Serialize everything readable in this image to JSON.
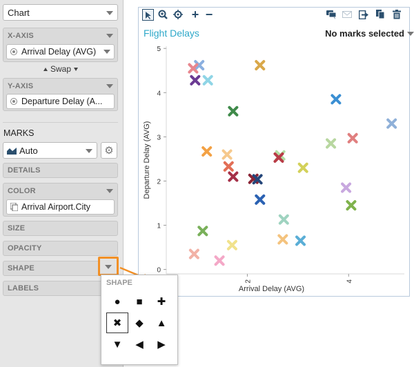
{
  "left_panel": {
    "chart_type": "Chart",
    "x_axis": {
      "label": "X-AXIS",
      "value": "Arrival Delay (AVG)"
    },
    "swap_label": "Swap",
    "y_axis": {
      "label": "Y-AXIS",
      "value": "Departure Delay (A..."
    },
    "marks": {
      "heading": "MARKS",
      "type": "Auto",
      "shelves": {
        "details": "DETAILS",
        "color": {
          "label": "COLOR",
          "value": "Arrival Airport.City"
        },
        "size": "SIZE",
        "opacity": "OPACITY",
        "shape": "SHAPE",
        "labels": "LABELS"
      }
    }
  },
  "chart_header": {
    "title": "Flight Delays",
    "status": "No marks selected"
  },
  "toolbar_icons": [
    "select-icon",
    "zoom-icon",
    "center-icon",
    "plus-icon",
    "minus-icon",
    "comment-icon",
    "email-icon",
    "export-icon",
    "copy-icon",
    "trash-icon"
  ],
  "shape_popup": {
    "label": "SHAPE",
    "shapes": [
      "●",
      "■",
      "✚",
      "✖",
      "◆",
      "▲",
      "▼",
      "◀",
      "▶"
    ],
    "selected_index": 3
  },
  "accent_color": "#f29026",
  "chart_data": {
    "type": "scatter",
    "xlabel": "Arrival Delay (AVG)",
    "ylabel": "Departure Delay (AVG)",
    "xlim": [
      0.4,
      5.1
    ],
    "ylim": [
      -0.1,
      5.05
    ],
    "x_ticks": [
      2,
      4
    ],
    "y_ticks": [
      0,
      1,
      2,
      3,
      4,
      5
    ],
    "marker": "x",
    "points": [
      {
        "x": 1.05,
        "y": 4.62,
        "color": "#8bb0e0"
      },
      {
        "x": 0.93,
        "y": 4.55,
        "color": "#e8878f"
      },
      {
        "x": 0.97,
        "y": 4.28,
        "color": "#6b3a93"
      },
      {
        "x": 1.22,
        "y": 4.28,
        "color": "#8fd5e6"
      },
      {
        "x": 2.25,
        "y": 4.62,
        "color": "#d9a84a"
      },
      {
        "x": 1.72,
        "y": 3.58,
        "color": "#3f8a4a"
      },
      {
        "x": 3.75,
        "y": 3.85,
        "color": "#3b8fd3"
      },
      {
        "x": 4.85,
        "y": 3.3,
        "color": "#8fb0d8"
      },
      {
        "x": 4.08,
        "y": 2.97,
        "color": "#e07f7f"
      },
      {
        "x": 3.65,
        "y": 2.85,
        "color": "#b8d7a0"
      },
      {
        "x": 1.2,
        "y": 2.67,
        "color": "#f3a144"
      },
      {
        "x": 1.6,
        "y": 2.6,
        "color": "#f6c98d"
      },
      {
        "x": 2.65,
        "y": 2.58,
        "color": "#b3dea3"
      },
      {
        "x": 2.62,
        "y": 2.53,
        "color": "#b83c46"
      },
      {
        "x": 3.1,
        "y": 2.3,
        "color": "#d3d15a"
      },
      {
        "x": 1.63,
        "y": 2.33,
        "color": "#e26e56"
      },
      {
        "x": 1.72,
        "y": 2.1,
        "color": "#a53048"
      },
      {
        "x": 2.12,
        "y": 2.05,
        "color": "#8a2435"
      },
      {
        "x": 2.2,
        "y": 2.04,
        "color": "#24467a"
      },
      {
        "x": 3.95,
        "y": 1.85,
        "color": "#c8a8df"
      },
      {
        "x": 4.05,
        "y": 1.45,
        "color": "#7fb24c"
      },
      {
        "x": 2.25,
        "y": 1.58,
        "color": "#2b62b3"
      },
      {
        "x": 2.72,
        "y": 1.13,
        "color": "#9fd3c0"
      },
      {
        "x": 1.12,
        "y": 0.87,
        "color": "#79b05a"
      },
      {
        "x": 1.7,
        "y": 0.55,
        "color": "#f1e28c"
      },
      {
        "x": 2.7,
        "y": 0.68,
        "color": "#f4c37e"
      },
      {
        "x": 3.05,
        "y": 0.65,
        "color": "#5aaed6"
      },
      {
        "x": 0.95,
        "y": 0.35,
        "color": "#f2b2a6"
      },
      {
        "x": 1.45,
        "y": 0.2,
        "color": "#f4a8c7"
      }
    ]
  }
}
